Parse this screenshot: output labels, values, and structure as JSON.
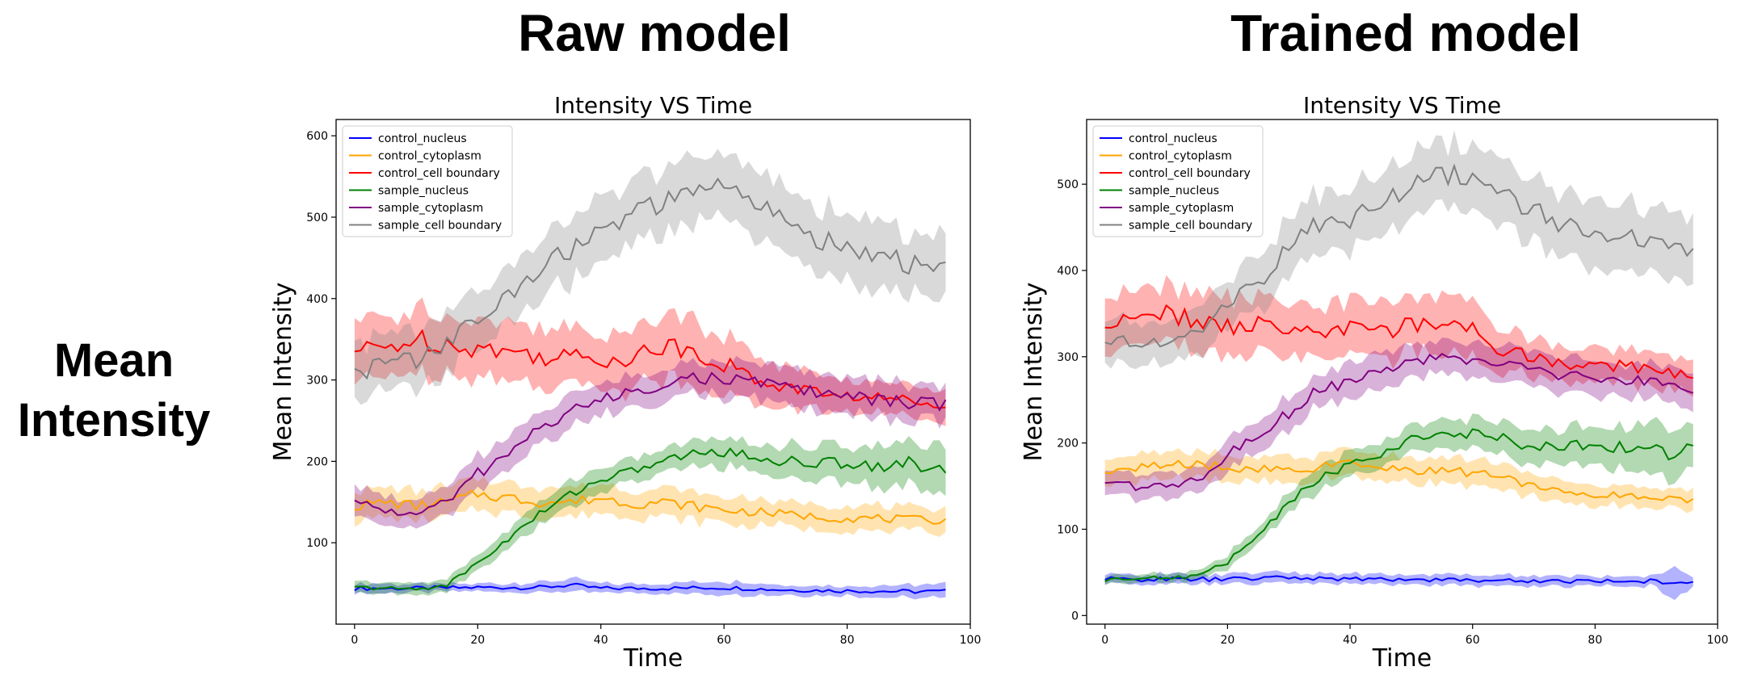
{
  "headings": {
    "left": "Raw model",
    "right": "Trained model"
  },
  "row_label": {
    "line1": "Mean",
    "line2": "Intensity"
  },
  "colors": {
    "control_nucleus": "#0000ff",
    "control_cytoplasm": "#ffa500",
    "control_cell boundary": "#ff0000",
    "sample_nucleus": "#008000",
    "sample_cytoplasm": "#800080",
    "sample_cell boundary": "#808080"
  },
  "chart_data": [
    {
      "type": "line",
      "title": "Intensity VS Time",
      "xlabel": "Time",
      "ylabel": "Mean Intensity",
      "xlim": [
        -3,
        100
      ],
      "ylim": [
        0,
        620
      ],
      "xticks": [
        "0",
        "20",
        "40",
        "60",
        "80",
        "100"
      ],
      "yticks": [
        "100",
        "200",
        "300",
        "400",
        "500",
        "600"
      ],
      "legend_position": "top-left",
      "grid": false,
      "series": [
        {
          "name": "control_nucleus",
          "color": "#0000ff",
          "x": [
            0,
            10,
            20,
            30,
            35,
            40,
            50,
            60,
            70,
            80,
            90,
            96
          ],
          "y": [
            44,
            44,
            45,
            45,
            48,
            44,
            44,
            45,
            42,
            41,
            40,
            40
          ],
          "band": [
            6,
            5,
            5,
            6,
            8,
            6,
            6,
            8,
            6,
            6,
            8,
            8
          ]
        },
        {
          "name": "control_cytoplasm",
          "color": "#ffa500",
          "x": [
            0,
            5,
            10,
            15,
            20,
            25,
            30,
            35,
            40,
            45,
            50,
            55,
            60,
            65,
            70,
            75,
            80,
            85,
            90,
            96
          ],
          "y": [
            145,
            150,
            145,
            150,
            160,
            155,
            150,
            150,
            155,
            148,
            150,
            145,
            140,
            138,
            135,
            132,
            130,
            130,
            128,
            128
          ],
          "band": [
            18,
            18,
            18,
            18,
            18,
            20,
            18,
            18,
            18,
            18,
            18,
            18,
            16,
            16,
            15,
            15,
            15,
            15,
            15,
            15
          ]
        },
        {
          "name": "control_cell boundary",
          "color": "#ff0000",
          "x": [
            0,
            5,
            10,
            15,
            20,
            25,
            30,
            35,
            40,
            45,
            50,
            55,
            60,
            65,
            70,
            75,
            80,
            85,
            90,
            96
          ],
          "y": [
            335,
            340,
            350,
            345,
            340,
            335,
            330,
            328,
            325,
            330,
            340,
            338,
            320,
            300,
            292,
            285,
            280,
            278,
            275,
            272
          ],
          "band": [
            35,
            35,
            38,
            38,
            38,
            35,
            35,
            35,
            35,
            38,
            40,
            40,
            35,
            28,
            25,
            22,
            20,
            20,
            20,
            20
          ]
        },
        {
          "name": "sample_nucleus",
          "color": "#008000",
          "x": [
            0,
            5,
            10,
            15,
            20,
            25,
            30,
            35,
            40,
            45,
            50,
            55,
            60,
            65,
            70,
            75,
            80,
            85,
            90,
            96
          ],
          "y": [
            45,
            44,
            43,
            48,
            75,
            105,
            135,
            160,
            178,
            188,
            200,
            210,
            212,
            205,
            200,
            198,
            198,
            196,
            196,
            195
          ],
          "band": [
            7,
            7,
            7,
            8,
            10,
            12,
            14,
            15,
            15,
            15,
            15,
            16,
            18,
            18,
            20,
            20,
            22,
            25,
            28,
            30
          ]
        },
        {
          "name": "sample_cytoplasm",
          "color": "#800080",
          "x": [
            0,
            5,
            10,
            15,
            20,
            25,
            30,
            35,
            40,
            45,
            50,
            55,
            60,
            65,
            70,
            75,
            80,
            85,
            90,
            96
          ],
          "y": [
            150,
            140,
            135,
            150,
            185,
            210,
            240,
            262,
            275,
            285,
            295,
            303,
            300,
            298,
            292,
            285,
            280,
            275,
            272,
            270
          ],
          "band": [
            18,
            18,
            18,
            18,
            20,
            20,
            20,
            20,
            20,
            20,
            20,
            20,
            22,
            22,
            22,
            22,
            22,
            22,
            22,
            22
          ]
        },
        {
          "name": "sample_cell boundary",
          "color": "#808080",
          "x": [
            0,
            5,
            10,
            15,
            20,
            25,
            30,
            35,
            40,
            45,
            50,
            55,
            60,
            65,
            70,
            75,
            80,
            85,
            90,
            96
          ],
          "y": [
            310,
            320,
            325,
            345,
            375,
            400,
            440,
            460,
            480,
            505,
            515,
            530,
            540,
            520,
            490,
            475,
            465,
            455,
            440,
            440
          ],
          "band": [
            35,
            35,
            35,
            35,
            35,
            35,
            35,
            38,
            38,
            38,
            38,
            40,
            40,
            40,
            40,
            40,
            40,
            40,
            40,
            42
          ]
        }
      ]
    },
    {
      "type": "line",
      "title": "Intensity VS Time",
      "xlabel": "Time",
      "ylabel": "Mean Intensity",
      "xlim": [
        -3,
        100
      ],
      "ylim": [
        -10,
        575
      ],
      "xticks": [
        "0",
        "20",
        "40",
        "60",
        "80",
        "100"
      ],
      "yticks": [
        "0",
        "100",
        "200",
        "300",
        "400",
        "500"
      ],
      "legend_position": "top-left",
      "grid": false,
      "series": [
        {
          "name": "control_nucleus",
          "color": "#0000ff",
          "x": [
            0,
            10,
            20,
            30,
            40,
            50,
            60,
            70,
            80,
            90,
            93,
            96
          ],
          "y": [
            42,
            42,
            42,
            44,
            42,
            42,
            41,
            40,
            40,
            40,
            38,
            40
          ],
          "band": [
            6,
            6,
            6,
            6,
            6,
            6,
            6,
            6,
            6,
            6,
            18,
            6
          ]
        },
        {
          "name": "control_cytoplasm",
          "color": "#ffa500",
          "x": [
            0,
            5,
            10,
            15,
            20,
            25,
            30,
            35,
            40,
            45,
            50,
            55,
            60,
            65,
            70,
            75,
            80,
            85,
            90,
            96
          ],
          "y": [
            168,
            170,
            175,
            175,
            172,
            170,
            168,
            172,
            175,
            170,
            168,
            168,
            165,
            160,
            150,
            145,
            140,
            140,
            135,
            135
          ],
          "band": [
            15,
            15,
            15,
            15,
            15,
            15,
            15,
            15,
            15,
            15,
            15,
            15,
            15,
            15,
            12,
            12,
            12,
            12,
            12,
            12
          ]
        },
        {
          "name": "control_cell boundary",
          "color": "#ff0000",
          "x": [
            0,
            5,
            10,
            15,
            20,
            25,
            30,
            35,
            40,
            45,
            50,
            55,
            60,
            65,
            70,
            75,
            80,
            85,
            90,
            96
          ],
          "y": [
            338,
            345,
            350,
            340,
            335,
            338,
            335,
            330,
            330,
            332,
            335,
            340,
            330,
            305,
            300,
            292,
            290,
            290,
            285,
            280
          ],
          "band": [
            32,
            32,
            32,
            32,
            32,
            32,
            32,
            32,
            32,
            32,
            32,
            35,
            30,
            25,
            22,
            20,
            20,
            20,
            20,
            22
          ]
        },
        {
          "name": "sample_nucleus",
          "color": "#008000",
          "x": [
            0,
            5,
            10,
            15,
            20,
            25,
            30,
            35,
            40,
            45,
            50,
            55,
            60,
            65,
            70,
            75,
            80,
            85,
            90,
            96
          ],
          "y": [
            42,
            44,
            44,
            45,
            62,
            95,
            130,
            160,
            175,
            188,
            205,
            212,
            210,
            205,
            195,
            195,
            200,
            195,
            190,
            188
          ],
          "band": [
            5,
            5,
            5,
            6,
            8,
            10,
            12,
            14,
            15,
            15,
            15,
            16,
            18,
            18,
            18,
            20,
            22,
            25,
            28,
            30
          ]
        },
        {
          "name": "sample_cytoplasm",
          "color": "#800080",
          "x": [
            0,
            5,
            10,
            15,
            20,
            25,
            30,
            35,
            40,
            45,
            50,
            55,
            60,
            65,
            70,
            75,
            80,
            85,
            90,
            96
          ],
          "y": [
            158,
            150,
            150,
            158,
            185,
            210,
            235,
            262,
            272,
            285,
            295,
            298,
            297,
            290,
            282,
            278,
            275,
            272,
            268,
            265
          ],
          "band": [
            15,
            15,
            15,
            15,
            18,
            18,
            20,
            20,
            20,
            20,
            20,
            20,
            20,
            20,
            20,
            20,
            20,
            20,
            20,
            22
          ]
        },
        {
          "name": "sample_cell boundary",
          "color": "#808080",
          "x": [
            0,
            5,
            10,
            15,
            20,
            25,
            30,
            35,
            40,
            45,
            50,
            55,
            60,
            65,
            70,
            75,
            80,
            85,
            90,
            96
          ],
          "y": [
            312,
            320,
            310,
            330,
            365,
            385,
            430,
            455,
            460,
            480,
            495,
            510,
            505,
            490,
            470,
            455,
            450,
            440,
            430,
            415
          ],
          "band": [
            25,
            25,
            25,
            28,
            28,
            30,
            32,
            35,
            35,
            35,
            35,
            38,
            38,
            38,
            38,
            38,
            38,
            38,
            38,
            38
          ]
        }
      ]
    }
  ]
}
